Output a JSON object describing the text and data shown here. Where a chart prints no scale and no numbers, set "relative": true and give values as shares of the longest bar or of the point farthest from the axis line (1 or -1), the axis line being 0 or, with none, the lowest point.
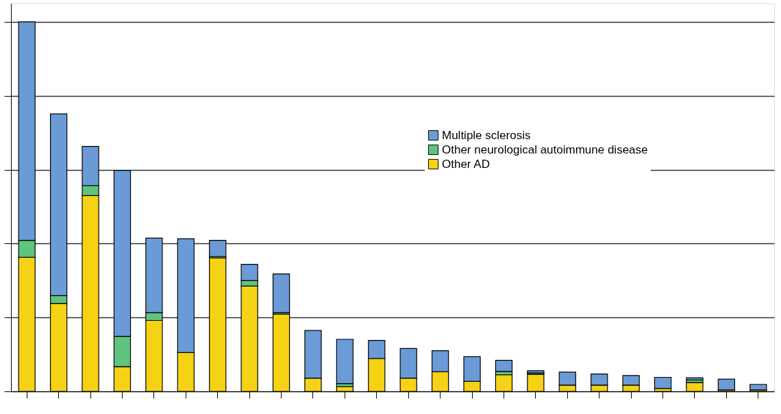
{
  "chart_data": {
    "type": "bar",
    "stacked": true,
    "relative": true,
    "grid": "y",
    "legend": "top right",
    "categories": [
      null,
      null,
      null,
      null,
      null,
      null,
      null,
      null,
      null,
      null,
      null,
      null,
      null,
      null,
      null,
      null,
      null,
      null,
      null,
      null,
      null,
      null,
      null,
      null
    ],
    "series": [
      {
        "name": "Other AD",
        "color": "#f5d214",
        "values": [
          0.363,
          0.238,
          0.53,
          0.067,
          0.192,
          0.105,
          0.361,
          0.285,
          0.209,
          0.036,
          0.013,
          0.089,
          0.036,
          0.053,
          0.027,
          0.045,
          0.046,
          0.017,
          0.017,
          0.017,
          0.008,
          0.024,
          0.004,
          0.004
        ]
      },
      {
        "name": "Other neurological autoimmune disease",
        "color": "#5fc47d",
        "values": [
          0.046,
          0.021,
          0.027,
          0.082,
          0.021,
          0,
          0.004,
          0.015,
          0.004,
          0,
          0.008,
          0,
          0,
          0,
          0,
          0.009,
          0.004,
          0,
          0,
          0,
          0,
          0.007,
          0,
          0
        ]
      },
      {
        "name": "Multiple sclerosis",
        "color": "#6a9bd6",
        "values": [
          0.591,
          0.492,
          0.106,
          0.449,
          0.202,
          0.308,
          0.044,
          0.044,
          0.105,
          0.129,
          0.12,
          0.049,
          0.08,
          0.057,
          0.067,
          0.03,
          0.006,
          0.035,
          0.03,
          0.026,
          0.03,
          0.006,
          0.029,
          0.015
        ]
      }
    ]
  }
}
